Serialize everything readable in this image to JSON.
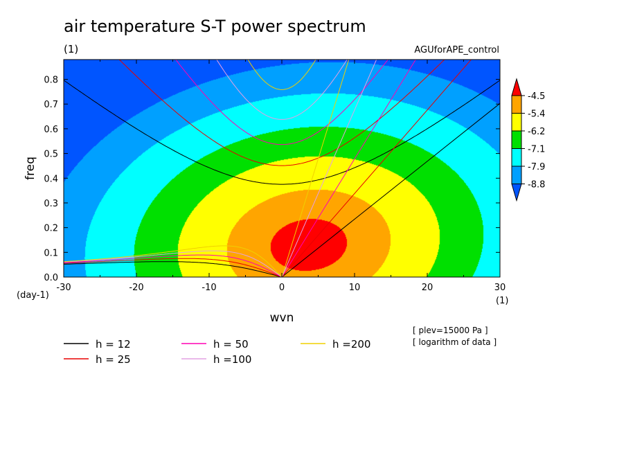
{
  "chart_data": {
    "type": "heatmap",
    "title": "air temperature S-T power spectrum",
    "subtitle_units": "(1)",
    "experiment": "AGUforAPE_control",
    "xlabel": "wvn",
    "ylabel": "freq",
    "x_units": "(1)",
    "y_units": "(day-1)",
    "xlim": [
      -30,
      30
    ],
    "ylim": [
      0.0,
      0.88
    ],
    "x_ticks": [
      "-30",
      "-20",
      "-10",
      "0",
      "10",
      "20",
      "30"
    ],
    "y_ticks": [
      "0.0",
      "0.1",
      "0.2",
      "0.3",
      "0.4",
      "0.5",
      "0.6",
      "0.7",
      "0.8"
    ],
    "colorbar": {
      "labels": [
        "-4.5",
        "-5.4",
        "-6.2",
        "-7.1",
        "-7.9",
        "-8.8"
      ],
      "colors": [
        "#0055ff",
        "#00a0ff",
        "#00ffff",
        "#00e000",
        "#ffff00",
        "#ffa500",
        "#ff0000"
      ]
    },
    "dispersion_curves": [
      {
        "label": "h = 12",
        "h": 12,
        "color": "#000000"
      },
      {
        "label": "h = 25",
        "h": 25,
        "color": "#e80000"
      },
      {
        "label": "h = 50",
        "h": 50,
        "color": "#ff00b4"
      },
      {
        "label": "h =100",
        "h": 100,
        "color": "#e3a0e3"
      },
      {
        "label": "h =200",
        "h": 200,
        "color": "#f0d000"
      }
    ],
    "notes": [
      "[ plev=15000 Pa ]",
      "[ logarithm of data ]"
    ]
  }
}
